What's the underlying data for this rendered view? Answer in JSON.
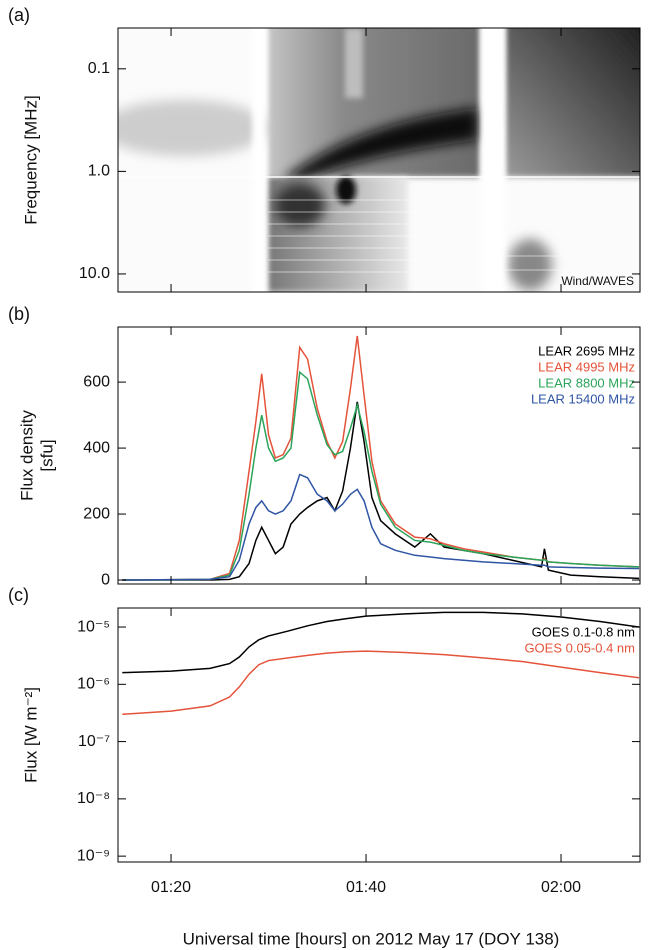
{
  "chart_data": [
    {
      "type": "spectrogram",
      "panel_label": "(a)",
      "ylabel": "Frequency [MHz]",
      "annotation": "Wind/WAVES",
      "yscale": "log",
      "yreverse": true,
      "ylim": [
        0.04,
        15
      ],
      "yticks": [
        0.1,
        {
          "value": 1,
          "label": "1.0"
        },
        {
          "value": 10,
          "label": "10.0"
        }
      ],
      "xlim": [
        74.56,
        128.1
      ],
      "xticks": [
        80,
        100,
        120
      ]
    },
    {
      "type": "line",
      "panel_label": "(b)",
      "ylabel": [
        "Flux density",
        "[sfu]"
      ],
      "legend": "upper right",
      "ylim": [
        -12,
        767
      ],
      "yticks": [
        0,
        200,
        400,
        600
      ],
      "xlim": [
        74.56,
        128.1
      ],
      "xticks": [
        80,
        100,
        120
      ],
      "x": [
        75,
        84,
        86,
        87,
        88,
        88.7,
        89.3,
        90,
        90.7,
        91.5,
        92.3,
        93.2,
        94,
        95,
        96,
        96.8,
        97.6,
        98.4,
        99.1,
        99.8,
        100.6,
        101.5,
        103,
        105,
        106.6,
        108,
        110,
        112,
        115,
        118,
        118.3,
        118.7,
        121,
        124,
        128
      ],
      "series": [
        {
          "name": "LEAR 2695 MHz",
          "color": "#000000",
          "values": [
            0,
            0,
            2,
            10,
            50,
            120,
            160,
            120,
            80,
            100,
            170,
            200,
            220,
            240,
            250,
            210,
            270,
            400,
            540,
            420,
            250,
            180,
            140,
            100,
            140,
            100,
            90,
            80,
            60,
            40,
            95,
            30,
            15,
            10,
            5
          ]
        },
        {
          "name": "LEAR 4995 MHz",
          "color": "#e4533a",
          "values": [
            0,
            2,
            20,
            120,
            330,
            480,
            625,
            440,
            370,
            380,
            430,
            705,
            670,
            520,
            420,
            370,
            420,
            580,
            740,
            560,
            360,
            240,
            170,
            130,
            125,
            110,
            95,
            85,
            70,
            60,
            65,
            55,
            50,
            45,
            40
          ]
        },
        {
          "name": "LEAR 8800 MHz",
          "color": "#2ba55a",
          "values": [
            0,
            2,
            15,
            90,
            260,
            400,
            500,
            400,
            360,
            370,
            400,
            630,
            610,
            500,
            410,
            380,
            390,
            460,
            530,
            450,
            330,
            230,
            160,
            120,
            115,
            105,
            90,
            80,
            70,
            60,
            62,
            55,
            50,
            45,
            40
          ]
        },
        {
          "name": "LEAR 15400 MHz",
          "color": "#2f55a4",
          "values": [
            0,
            2,
            10,
            60,
            170,
            220,
            240,
            210,
            200,
            210,
            240,
            320,
            310,
            260,
            240,
            210,
            230,
            260,
            275,
            240,
            160,
            110,
            90,
            75,
            70,
            65,
            60,
            55,
            50,
            45,
            45,
            40,
            38,
            36,
            35
          ]
        }
      ]
    },
    {
      "type": "line",
      "panel_label": "(c)",
      "ylabel": "Flux [W m⁻²]",
      "legend": "upper right",
      "xlabel": "Universal time [hours] on 2012 May 17 (DOY 138)",
      "yscale": "log",
      "ylim": [
        7.9e-10,
        2.15e-05
      ],
      "yticks": [
        {
          "value": 1e-09,
          "label": "10⁻⁹"
        },
        {
          "value": 1e-08,
          "label": "10⁻⁸"
        },
        {
          "value": 1e-07,
          "label": "10⁻⁷"
        },
        {
          "value": 1e-06,
          "label": "10⁻⁶"
        },
        {
          "value": 1e-05,
          "label": "10⁻⁵"
        }
      ],
      "xlim": [
        74.56,
        128.1
      ],
      "xticks": [
        {
          "value": 80,
          "label": "01:20"
        },
        {
          "value": 100,
          "label": "01:40"
        },
        {
          "value": 120,
          "label": "02:00"
        }
      ],
      "x": [
        75,
        80,
        84,
        86,
        87,
        88,
        89,
        90,
        92,
        94,
        96,
        98,
        100,
        104,
        108,
        112,
        116,
        120,
        124,
        128
      ],
      "series": [
        {
          "name": "GOES 0.1-0.8 nm",
          "color": "#000000",
          "values": [
            1.6e-06,
            1.7e-06,
            1.9e-06,
            2.3e-06,
            3e-06,
            4.5e-06,
            6e-06,
            7e-06,
            8.5e-06,
            1.05e-05,
            1.25e-05,
            1.4e-05,
            1.55e-05,
            1.7e-05,
            1.8e-05,
            1.8e-05,
            1.7e-05,
            1.5e-05,
            1.25e-05,
            1e-05
          ]
        },
        {
          "name": "GOES 0.05-0.4 nm",
          "color": "#e4533a",
          "values": [
            3e-07,
            3.4e-07,
            4.2e-07,
            6e-07,
            9e-07,
            1.5e-06,
            2.2e-06,
            2.6e-06,
            2.9e-06,
            3.2e-06,
            3.5e-06,
            3.7e-06,
            3.8e-06,
            3.6e-06,
            3.3e-06,
            2.9e-06,
            2.5e-06,
            2e-06,
            1.6e-06,
            1.3e-06
          ]
        }
      ]
    }
  ]
}
